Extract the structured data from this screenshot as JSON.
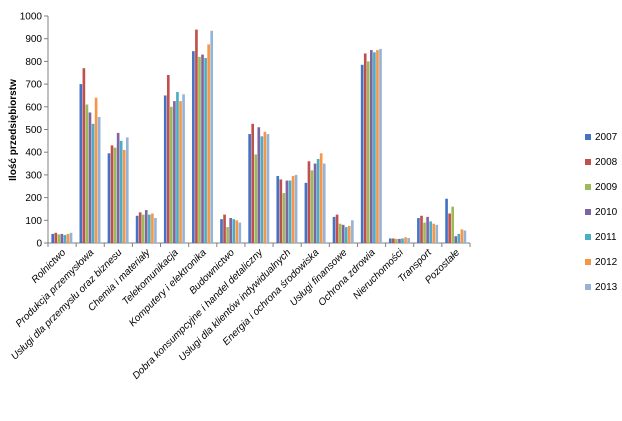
{
  "chart_data": {
    "type": "bar",
    "title": "",
    "xlabel": "",
    "ylabel": "Ilość przedsiębiorstw",
    "ylim": [
      0,
      1000
    ],
    "yticks": [
      0,
      100,
      200,
      300,
      400,
      500,
      600,
      700,
      800,
      900,
      1000
    ],
    "grid": false,
    "legend_position": "right",
    "categories": [
      "Rolnictwo",
      "Produkcja przemysłowa",
      "Usługi dla przemysłu oraz biznesu",
      "Chemia i materiały",
      "Telekomunikacja",
      "Komputery i elektronika",
      "Budownictwo",
      "Dobra konsumpcyjne i handel detaliczny",
      "Usługi dla klientów indywidualnych",
      "Energia i ochrona środowiska",
      "Usługi finansowe",
      "Ochrona zdrowia",
      "Nieruchomości",
      "Transport",
      "Pozostałe"
    ],
    "series": [
      {
        "name": "2007",
        "color": "#4472C4",
        "values": [
          40,
          700,
          395,
          120,
          650,
          845,
          105,
          480,
          295,
          265,
          115,
          785,
          20,
          110,
          195
        ]
      },
      {
        "name": "2008",
        "color": "#C0504D",
        "values": [
          45,
          770,
          430,
          135,
          740,
          940,
          125,
          525,
          280,
          360,
          125,
          835,
          20,
          120,
          130
        ]
      },
      {
        "name": "2009",
        "color": "#9BBB59",
        "values": [
          38,
          610,
          420,
          125,
          600,
          820,
          70,
          390,
          220,
          320,
          85,
          800,
          18,
          90,
          160
        ]
      },
      {
        "name": "2010",
        "color": "#8064A2",
        "values": [
          40,
          575,
          485,
          145,
          625,
          830,
          110,
          510,
          275,
          350,
          80,
          850,
          18,
          115,
          30
        ]
      },
      {
        "name": "2011",
        "color": "#4BACC6",
        "values": [
          35,
          525,
          450,
          125,
          665,
          815,
          105,
          470,
          275,
          370,
          70,
          840,
          20,
          95,
          40
        ]
      },
      {
        "name": "2012",
        "color": "#F79646",
        "values": [
          40,
          640,
          410,
          130,
          625,
          875,
          100,
          490,
          295,
          395,
          75,
          850,
          25,
          85,
          60
        ]
      },
      {
        "name": "2013",
        "color": "#95B3D7",
        "values": [
          45,
          555,
          465,
          110,
          655,
          935,
          90,
          480,
          300,
          350,
          100,
          855,
          22,
          80,
          55
        ]
      }
    ]
  }
}
